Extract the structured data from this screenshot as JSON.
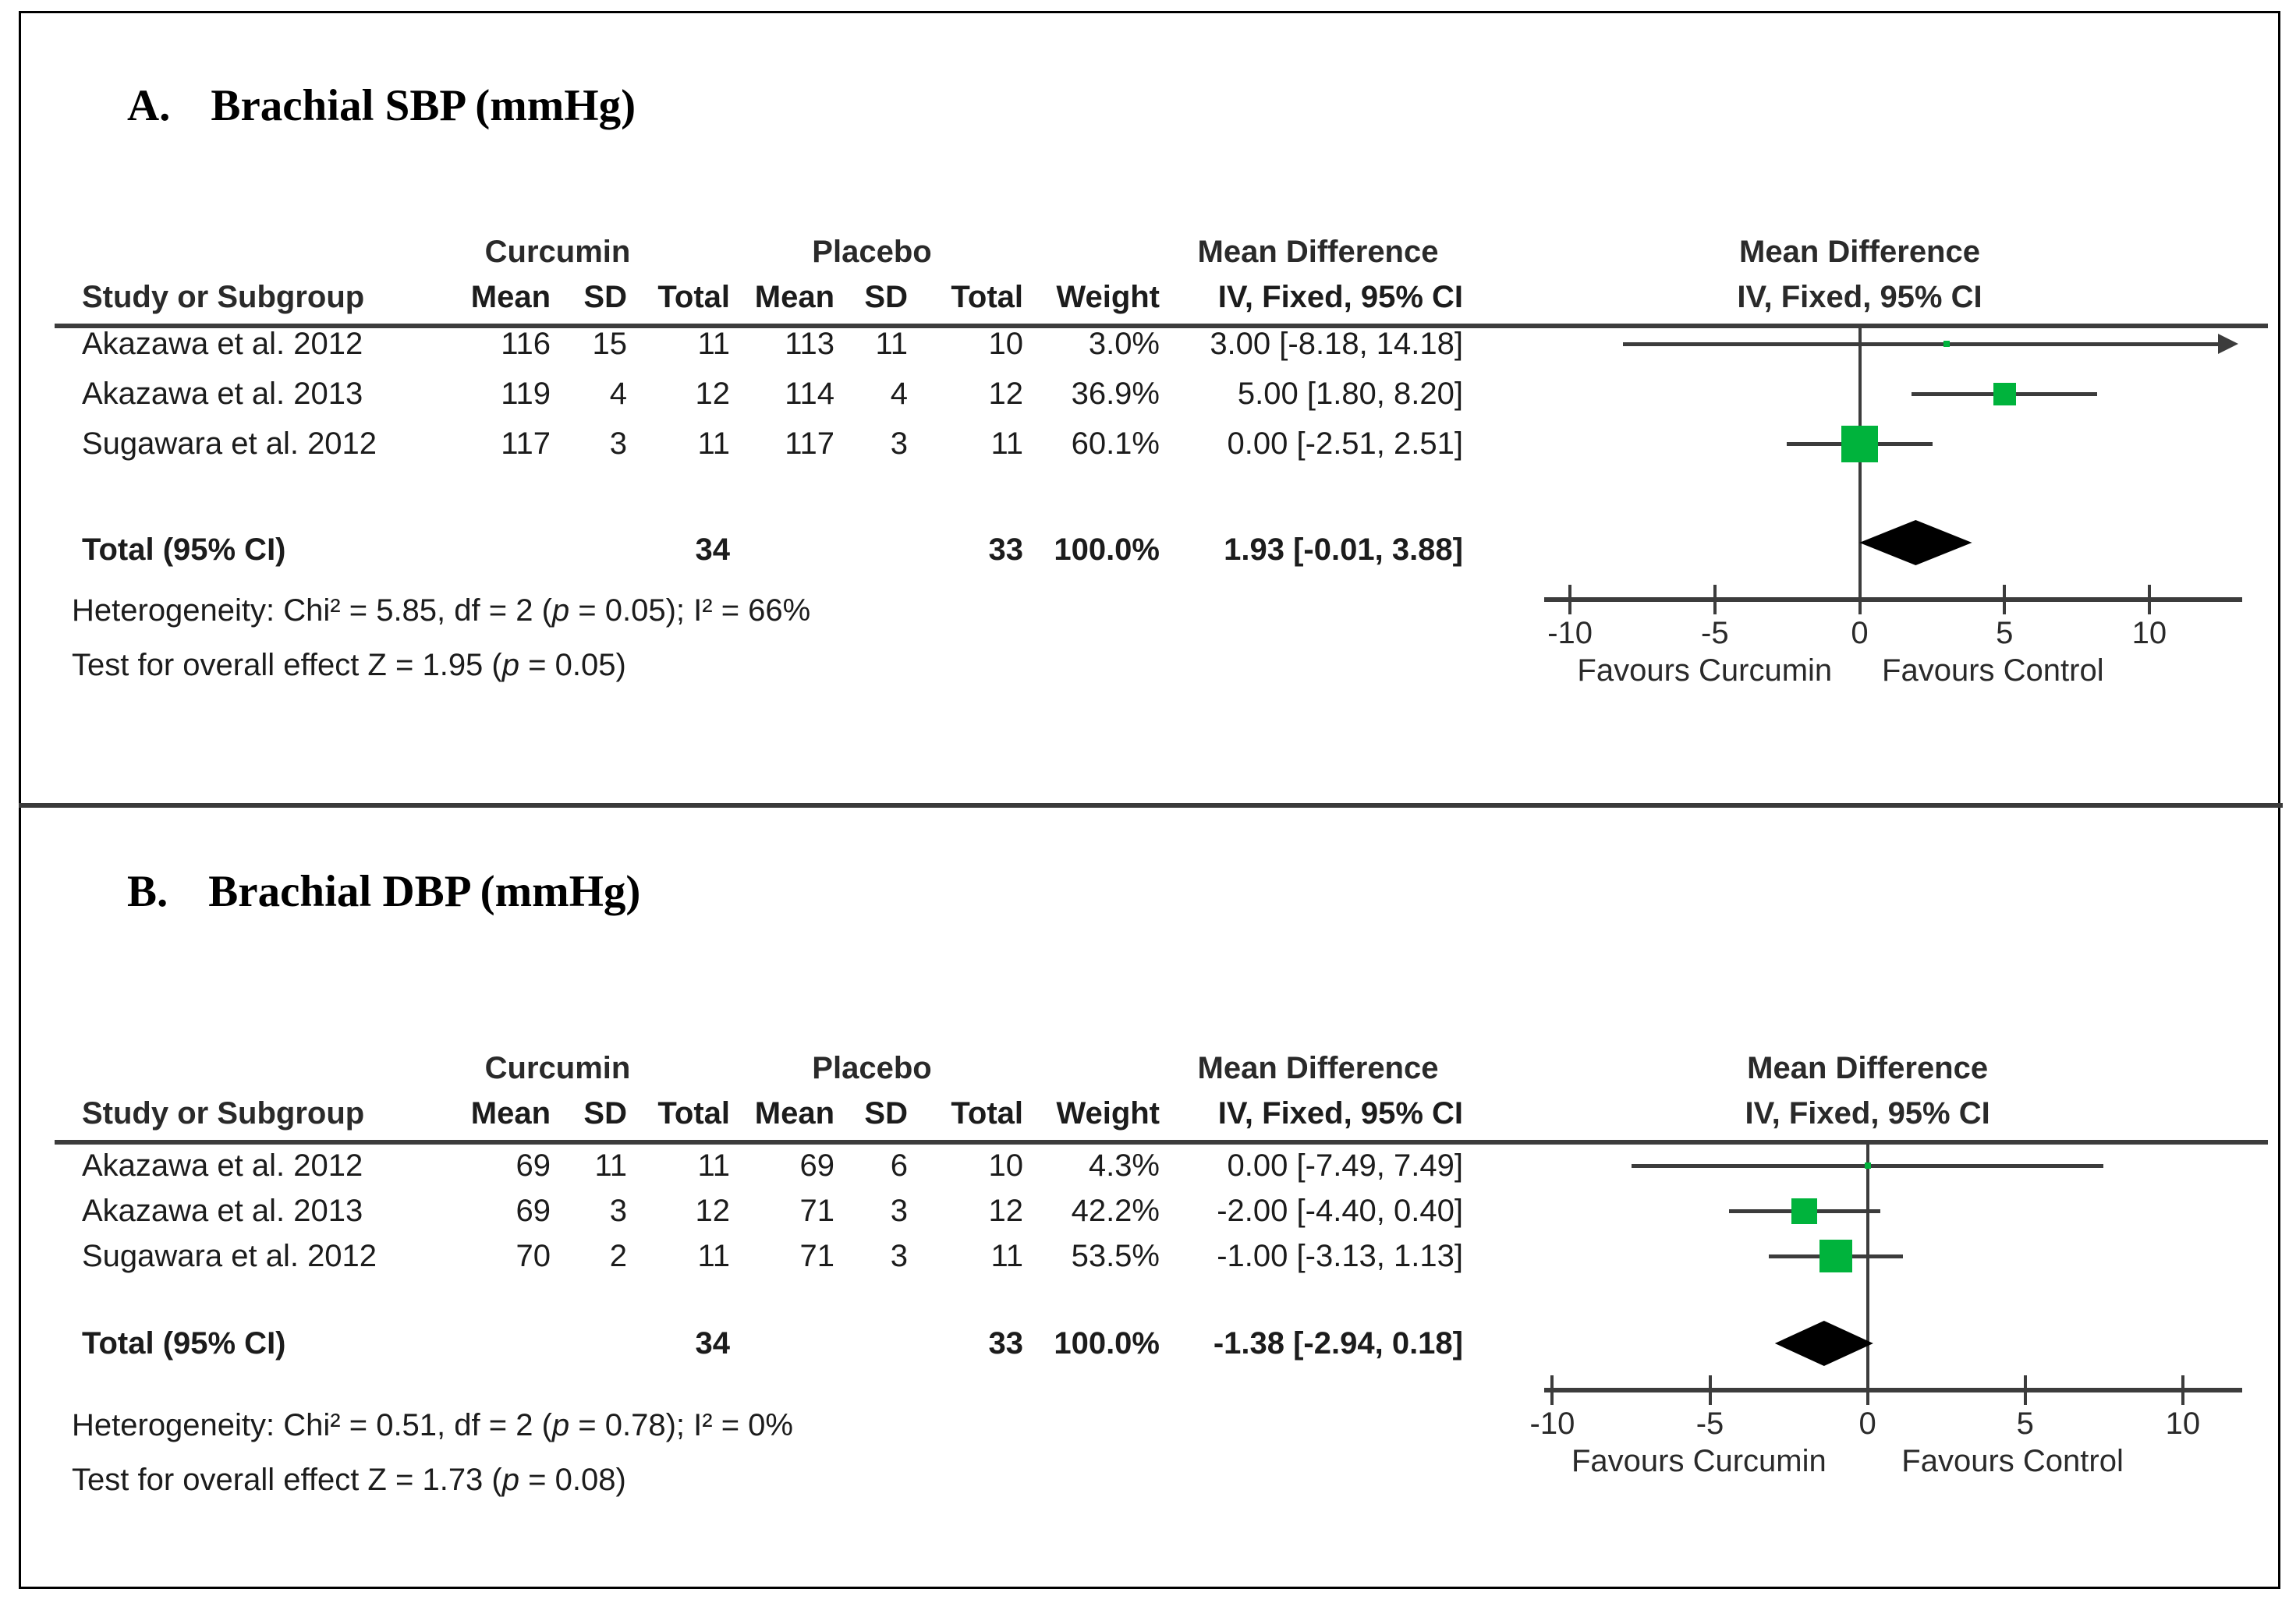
{
  "colors": {
    "marker_green": "#00b33c",
    "line_gray": "#3c3c3c",
    "diamond_black": "#000000",
    "text": "#1c1c1c"
  },
  "columns": {
    "study": "Study or Subgroup",
    "group1": "Curcumin",
    "group2": "Placebo",
    "mean": "Mean",
    "sd": "SD",
    "total": "Total",
    "weight": "Weight",
    "effect": "Mean Difference",
    "effect_sub": "IV, Fixed, 95% CI"
  },
  "chart_data": [
    {
      "type": "forest",
      "panel_label": "A.",
      "title": "Brachial SBP (mmHg)",
      "effect_measure": "Mean Difference",
      "method": "IV, Fixed, 95% CI",
      "studies": [
        {
          "study": "Akazawa et al. 2012",
          "exp_mean": 116,
          "exp_sd": 15,
          "exp_total": 11,
          "ctrl_mean": 113,
          "ctrl_sd": 11,
          "ctrl_total": 10,
          "weight_pct": 3.0,
          "weight_label": "3.0%",
          "est": 3.0,
          "ci_lo": -8.18,
          "ci_hi": 14.18,
          "estimate_label": "3.00 [-8.18, 14.18]"
        },
        {
          "study": "Akazawa et al. 2013",
          "exp_mean": 119,
          "exp_sd": 4,
          "exp_total": 12,
          "ctrl_mean": 114,
          "ctrl_sd": 4,
          "ctrl_total": 12,
          "weight_pct": 36.9,
          "weight_label": "36.9%",
          "est": 5.0,
          "ci_lo": 1.8,
          "ci_hi": 8.2,
          "estimate_label": "5.00 [1.80, 8.20]"
        },
        {
          "study": "Sugawara et al. 2012",
          "exp_mean": 117,
          "exp_sd": 3,
          "exp_total": 11,
          "ctrl_mean": 117,
          "ctrl_sd": 3,
          "ctrl_total": 11,
          "weight_pct": 60.1,
          "weight_label": "60.1%",
          "est": 0.0,
          "ci_lo": -2.51,
          "ci_hi": 2.51,
          "estimate_label": "0.00 [-2.51, 2.51]"
        }
      ],
      "total": {
        "label": "Total (95% CI)",
        "exp_total": 34,
        "ctrl_total": 33,
        "weight_label": "100.0%",
        "est": 1.93,
        "ci_lo": -0.01,
        "ci_hi": 3.88,
        "estimate_label": "1.93 [-0.01, 3.88]"
      },
      "heterogeneity": "Heterogeneity: Chi² = 5.85, df = 2 (p = 0.05); I² = 66%",
      "overall_effect": "Test for overall effect Z = 1.95 (p = 0.05)",
      "axis": {
        "min": -11.7,
        "max": 14.15,
        "ticks": [
          -10,
          -5,
          0,
          5,
          10
        ]
      },
      "favours_left": "Favours Curcumin",
      "favours_right": "Favours Control"
    },
    {
      "type": "forest",
      "panel_label": "B.",
      "title": "Brachial DBP (mmHg)",
      "effect_measure": "Mean Difference",
      "method": "IV, Fixed, 95% CI",
      "studies": [
        {
          "study": "Akazawa et al. 2012",
          "exp_mean": 69,
          "exp_sd": 11,
          "exp_total": 11,
          "ctrl_mean": 69,
          "ctrl_sd": 6,
          "ctrl_total": 10,
          "weight_pct": 4.3,
          "weight_label": "4.3%",
          "est": 0.0,
          "ci_lo": -7.49,
          "ci_hi": 7.49,
          "estimate_label": "0.00 [-7.49, 7.49]"
        },
        {
          "study": "Akazawa et al. 2013",
          "exp_mean": 69,
          "exp_sd": 3,
          "exp_total": 12,
          "ctrl_mean": 71,
          "ctrl_sd": 3,
          "ctrl_total": 12,
          "weight_pct": 42.2,
          "weight_label": "42.2%",
          "est": -2.0,
          "ci_lo": -4.4,
          "ci_hi": 0.4,
          "estimate_label": "-2.00 [-4.40, 0.40]"
        },
        {
          "study": "Sugawara et al. 2012",
          "exp_mean": 70,
          "exp_sd": 2,
          "exp_total": 11,
          "ctrl_mean": 71,
          "ctrl_sd": 3,
          "ctrl_total": 11,
          "weight_pct": 53.5,
          "weight_label": "53.5%",
          "est": -1.0,
          "ci_lo": -3.13,
          "ci_hi": 1.13,
          "estimate_label": "-1.00 [-3.13, 1.13]"
        }
      ],
      "total": {
        "label": "Total (95% CI)",
        "exp_total": 34,
        "ctrl_total": 33,
        "weight_label": "100.0%",
        "est": -1.38,
        "ci_lo": -2.94,
        "ci_hi": 0.18,
        "estimate_label": "-1.38 [-2.94, 0.18]"
      },
      "heterogeneity": "Heterogeneity: Chi² = 0.51, df = 2 (p = 0.78); I² = 0%",
      "overall_effect": "Test for overall effect Z = 1.73 (p = 0.08)",
      "axis": {
        "min": -11.0,
        "max": 12.75,
        "ticks": [
          -10,
          -5,
          0,
          5,
          10
        ]
      },
      "favours_left": "Favours Curcumin",
      "favours_right": "Favours Control"
    }
  ]
}
